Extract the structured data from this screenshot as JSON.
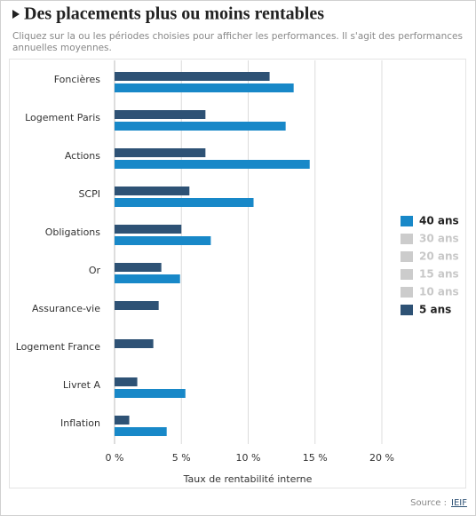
{
  "chart_data": {
    "type": "hbar",
    "title": "Des placements plus ou moins rentables",
    "subtitle": [
      "Cliquez sur la ou les périodes choisies pour afficher les performances. Il s'agit des performances",
      "annuelles moyennes."
    ],
    "x_label": "Taux de rentabilité interne",
    "source": {
      "label": "Source :",
      "name": "IEIF"
    },
    "categories": [
      "Foncières",
      "Logement Paris",
      "Actions",
      "SCPI",
      "Obligations",
      "Or",
      "Assurance-vie",
      "Logement France",
      "Livret A",
      "Inflation"
    ],
    "series": [
      {
        "name": "40 ans",
        "color": "#1888c8",
        "active": true,
        "values": [
          13.4,
          12.8,
          14.6,
          10.4,
          7.2,
          4.9,
          null,
          null,
          5.3,
          3.9
        ]
      },
      {
        "name": "30 ans",
        "color": "#cccccc",
        "active": false,
        "values": [
          null,
          null,
          null,
          null,
          null,
          null,
          null,
          null,
          null,
          null
        ]
      },
      {
        "name": "20 ans",
        "color": "#cccccc",
        "active": false,
        "values": [
          null,
          null,
          null,
          null,
          null,
          null,
          null,
          null,
          null,
          null
        ]
      },
      {
        "name": "15 ans",
        "color": "#cccccc",
        "active": false,
        "values": [
          null,
          null,
          null,
          null,
          null,
          null,
          null,
          null,
          null,
          null
        ]
      },
      {
        "name": "10 ans",
        "color": "#cccccc",
        "active": false,
        "values": [
          null,
          null,
          null,
          null,
          null,
          null,
          null,
          null,
          null,
          null
        ]
      },
      {
        "name": "5 ans",
        "color": "#2e5275",
        "active": true,
        "values": [
          11.6,
          6.8,
          6.8,
          5.6,
          5.0,
          3.5,
          3.3,
          2.9,
          1.7,
          1.1
        ]
      }
    ],
    "xlim": [
      0,
      20
    ],
    "xticks": [
      {
        "value": 0,
        "label": "0 %"
      },
      {
        "value": 5,
        "label": "5 %"
      },
      {
        "value": 10,
        "label": "10 %"
      },
      {
        "value": 15,
        "label": "15 %"
      },
      {
        "value": 20,
        "label": "20 %"
      }
    ],
    "grid": true
  }
}
